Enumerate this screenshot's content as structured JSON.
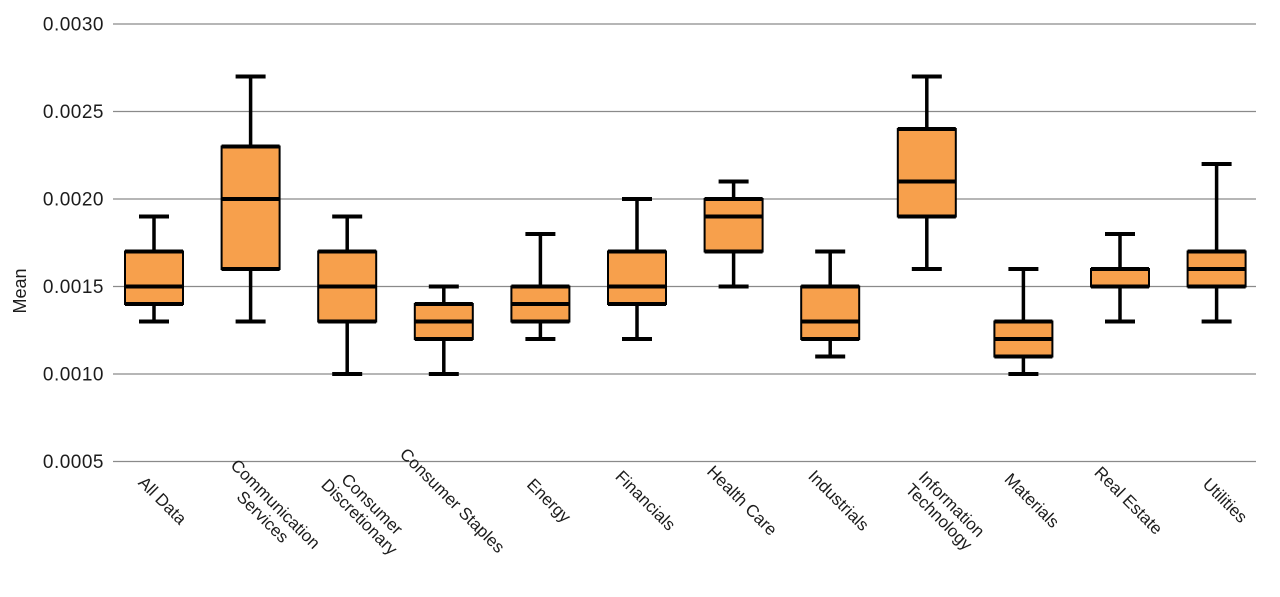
{
  "chart_data": {
    "type": "boxplot",
    "title": "",
    "xlabel": "",
    "ylabel": "Mean",
    "ylim": [
      0.0005,
      0.003
    ],
    "yticks": [
      0.003,
      0.0025,
      0.002,
      0.0015,
      0.001,
      0.0005
    ],
    "ytick_labels": [
      "0.0030",
      "0.0025",
      "0.0020",
      "0.0015",
      "0.0010",
      "0.0005"
    ],
    "grid": true,
    "legend": "none",
    "colors": {
      "box_fill": "#F7A04C",
      "box_edge": "#000000",
      "whisker": "#000000",
      "gridline": "#8a8a8a",
      "text": "#1c1c1c"
    },
    "categories": [
      "All Data",
      "Communication Services",
      "Consumer Discretionary",
      "Consumer Staples",
      "Energy",
      "Financials",
      "Health Care",
      "Industrials",
      "Information Technology",
      "Materials",
      "Real Estate",
      "Utilities"
    ],
    "series": [
      {
        "category": "All Data",
        "label_lines": [
          "All Data"
        ],
        "min": 0.0013,
        "q1": 0.0014,
        "median": 0.0015,
        "q3": 0.0017,
        "max": 0.0019
      },
      {
        "category": "Communication Services",
        "label_lines": [
          "Communication",
          "Services"
        ],
        "min": 0.0013,
        "q1": 0.0016,
        "median": 0.002,
        "q3": 0.0023,
        "max": 0.0027
      },
      {
        "category": "Consumer Discretionary",
        "label_lines": [
          "Consumer",
          "Discretionary"
        ],
        "min": 0.001,
        "q1": 0.0013,
        "median": 0.0015,
        "q3": 0.0017,
        "max": 0.0019
      },
      {
        "category": "Consumer Staples",
        "label_lines": [
          "Consumer Staples"
        ],
        "min": 0.001,
        "q1": 0.0012,
        "median": 0.0013,
        "q3": 0.0014,
        "max": 0.0015
      },
      {
        "category": "Energy",
        "label_lines": [
          "Energy"
        ],
        "min": 0.0012,
        "q1": 0.0013,
        "median": 0.0014,
        "q3": 0.0015,
        "max": 0.0018
      },
      {
        "category": "Financials",
        "label_lines": [
          "Financials"
        ],
        "min": 0.0012,
        "q1": 0.0014,
        "median": 0.0015,
        "q3": 0.0017,
        "max": 0.002
      },
      {
        "category": "Health Care",
        "label_lines": [
          "Health Care"
        ],
        "min": 0.0015,
        "q1": 0.0017,
        "median": 0.0019,
        "q3": 0.002,
        "max": 0.0021
      },
      {
        "category": "Industrials",
        "label_lines": [
          "Industrials"
        ],
        "min": 0.0011,
        "q1": 0.0012,
        "median": 0.0013,
        "q3": 0.0015,
        "max": 0.0017
      },
      {
        "category": "Information Technology",
        "label_lines": [
          "Information",
          "Technology"
        ],
        "min": 0.0016,
        "q1": 0.0019,
        "median": 0.0021,
        "q3": 0.0024,
        "max": 0.0027
      },
      {
        "category": "Materials",
        "label_lines": [
          "Materials"
        ],
        "min": 0.001,
        "q1": 0.0011,
        "median": 0.0012,
        "q3": 0.0013,
        "max": 0.0016
      },
      {
        "category": "Real Estate",
        "label_lines": [
          "Real Estate"
        ],
        "min": 0.0013,
        "q1": 0.0015,
        "median": 0.0015,
        "q3": 0.0016,
        "max": 0.0018
      },
      {
        "category": "Utilities",
        "label_lines": [
          "Utilities"
        ],
        "min": 0.0013,
        "q1": 0.0015,
        "median": 0.0016,
        "q3": 0.0017,
        "max": 0.0022
      }
    ]
  }
}
